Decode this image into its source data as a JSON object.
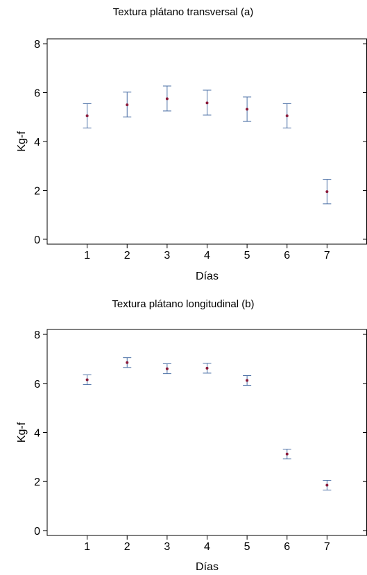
{
  "chart_data": [
    {
      "type": "scatter",
      "title": "Textura plátano transversal (a)",
      "xlabel": "Días",
      "ylabel": "Kg-f",
      "xlim": [
        0,
        8
      ],
      "ylim": [
        -0.2,
        8.2
      ],
      "xticks": [
        "1",
        "2",
        "3",
        "4",
        "5",
        "6",
        "7"
      ],
      "yticks": [
        "0",
        "2",
        "4",
        "6",
        "8"
      ],
      "grid": false,
      "point_color": "#8b1a3a",
      "errorbar_color": "#4a6fa5",
      "x": [
        1,
        2,
        3,
        4,
        5,
        6,
        7
      ],
      "y": [
        5.05,
        5.5,
        5.75,
        5.58,
        5.32,
        5.05,
        1.95
      ],
      "err_low": [
        4.55,
        5.0,
        5.25,
        5.08,
        4.82,
        4.55,
        1.45
      ],
      "err_high": [
        5.55,
        6.02,
        6.27,
        6.1,
        5.82,
        5.55,
        2.45
      ]
    },
    {
      "type": "scatter",
      "title": "Textura plátano longitudinal  (b)",
      "xlabel": "Días",
      "ylabel": "Kg-f",
      "xlim": [
        0,
        8
      ],
      "ylim": [
        -0.2,
        8.2
      ],
      "xticks": [
        "1",
        "2",
        "3",
        "4",
        "5",
        "6",
        "7"
      ],
      "yticks": [
        "0",
        "2",
        "4",
        "6",
        "8"
      ],
      "grid": false,
      "point_color": "#8b1a3a",
      "errorbar_color": "#4a6fa5",
      "x": [
        1,
        2,
        3,
        4,
        5,
        6,
        7
      ],
      "y": [
        6.15,
        6.85,
        6.6,
        6.62,
        6.12,
        3.12,
        1.85
      ],
      "err_low": [
        5.95,
        6.65,
        6.4,
        6.42,
        5.92,
        2.92,
        1.65
      ],
      "err_high": [
        6.35,
        7.05,
        6.8,
        6.82,
        6.32,
        3.32,
        2.05
      ]
    }
  ]
}
